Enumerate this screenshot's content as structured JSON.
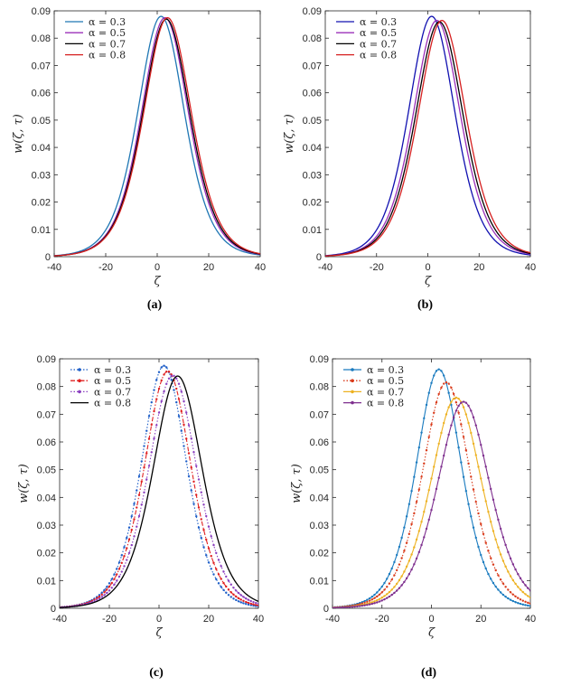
{
  "chart_data": [
    {
      "panel": "a",
      "caption": "(a)",
      "type": "line",
      "xlabel": "ζ",
      "ylabel": "w(ζ, τ)",
      "xlim": [
        -40,
        40
      ],
      "ylim": [
        0,
        0.09
      ],
      "xticks": [
        "-40",
        "-20",
        "0",
        "20",
        "40"
      ],
      "yticks": [
        "0",
        "0.01",
        "0.02",
        "0.03",
        "0.04",
        "0.05",
        "0.06",
        "0.07",
        "0.08",
        "0.09"
      ],
      "legend_position": "top-left",
      "series": [
        {
          "name": "α = 0.3",
          "color": "#1f77b4",
          "peak_x": 1.5,
          "peak_y": 0.088,
          "width": 12.2,
          "marker": "none",
          "dash": "solid"
        },
        {
          "name": "α = 0.5",
          "color": "#9b30b9",
          "peak_x": 3.0,
          "peak_y": 0.0875,
          "width": 12.3,
          "marker": "none",
          "dash": "solid"
        },
        {
          "name": "α = 0.7",
          "color": "#000000",
          "peak_x": 3.5,
          "peak_y": 0.087,
          "width": 12.4,
          "marker": "none",
          "dash": "solid"
        },
        {
          "name": "α = 0.8",
          "color": "#d62020",
          "peak_x": 4.0,
          "peak_y": 0.0875,
          "width": 12.5,
          "marker": "none",
          "dash": "solid"
        }
      ]
    },
    {
      "panel": "b",
      "caption": "(b)",
      "type": "line",
      "xlabel": "ζ",
      "ylabel": "w(ζ, τ)",
      "xlim": [
        -40,
        40
      ],
      "ylim": [
        0,
        0.09
      ],
      "xticks": [
        "-40",
        "-20",
        "0",
        "20",
        "40"
      ],
      "yticks": [
        "0",
        "0.01",
        "0.02",
        "0.03",
        "0.04",
        "0.05",
        "0.06",
        "0.07",
        "0.08",
        "0.09"
      ],
      "legend_position": "top-left",
      "series": [
        {
          "name": "α = 0.3",
          "color": "#1010b0",
          "peak_x": 1.5,
          "peak_y": 0.088,
          "width": 12.2,
          "marker": "none",
          "dash": "solid"
        },
        {
          "name": "α = 0.5",
          "color": "#9b30b9",
          "peak_x": 3.5,
          "peak_y": 0.0865,
          "width": 12.4,
          "marker": "none",
          "dash": "solid"
        },
        {
          "name": "α = 0.7",
          "color": "#000000",
          "peak_x": 4.5,
          "peak_y": 0.086,
          "width": 12.5,
          "marker": "none",
          "dash": "solid"
        },
        {
          "name": "α = 0.8",
          "color": "#d62020",
          "peak_x": 5.5,
          "peak_y": 0.0865,
          "width": 12.6,
          "marker": "none",
          "dash": "solid"
        }
      ]
    },
    {
      "panel": "c",
      "caption": "(c)",
      "type": "line",
      "xlabel": "ζ",
      "ylabel": "w(ζ, τ)",
      "xlim": [
        -40,
        40
      ],
      "ylim": [
        0,
        0.09
      ],
      "xticks": [
        "-40",
        "-20",
        "0",
        "20",
        "40"
      ],
      "yticks": [
        "0",
        "0.01",
        "0.02",
        "0.03",
        "0.04",
        "0.05",
        "0.06",
        "0.07",
        "0.08",
        "0.09"
      ],
      "legend_position": "top-left",
      "series": [
        {
          "name": "α = 0.3",
          "color": "#1f5fc8",
          "peak_x": 2.0,
          "peak_y": 0.0875,
          "width": 12.2,
          "marker": "dot",
          "dash": "dotted"
        },
        {
          "name": "α = 0.5",
          "color": "#e02020",
          "peak_x": 3.5,
          "peak_y": 0.0855,
          "width": 12.6,
          "marker": "dot",
          "dash": "dashdot"
        },
        {
          "name": "α = 0.7",
          "color": "#8b3fc0",
          "peak_x": 5.5,
          "peak_y": 0.084,
          "width": 13.0,
          "marker": "dot",
          "dash": "dotted"
        },
        {
          "name": "α = 0.8",
          "color": "#000000",
          "peak_x": 7.5,
          "peak_y": 0.0838,
          "width": 13.3,
          "marker": "none",
          "dash": "solid"
        }
      ]
    },
    {
      "panel": "d",
      "caption": "(d)",
      "type": "line",
      "xlabel": "ζ",
      "ylabel": "w(ζ, τ)",
      "xlim": [
        -40,
        40
      ],
      "ylim": [
        0,
        0.09
      ],
      "xticks": [
        "-40",
        "-20",
        "0",
        "20",
        "40"
      ],
      "yticks": [
        "0",
        "0.01",
        "0.02",
        "0.03",
        "0.04",
        "0.05",
        "0.06",
        "0.07",
        "0.08",
        "0.09"
      ],
      "legend_position": "top-left",
      "series": [
        {
          "name": "α = 0.3",
          "color": "#1a7bbf",
          "peak_x": 3.0,
          "peak_y": 0.0862,
          "width": 12.3,
          "marker": "dot",
          "dash": "solid"
        },
        {
          "name": "α = 0.5",
          "color": "#d93a1a",
          "peak_x": 6.0,
          "peak_y": 0.0815,
          "width": 13.0,
          "marker": "dot",
          "dash": "dotted"
        },
        {
          "name": "α = 0.7",
          "color": "#edb120",
          "peak_x": 10.0,
          "peak_y": 0.076,
          "width": 13.8,
          "marker": "dot",
          "dash": "solid"
        },
        {
          "name": "α = 0.8",
          "color": "#7e2f8e",
          "peak_x": 13.0,
          "peak_y": 0.0745,
          "width": 14.2,
          "marker": "dot",
          "dash": "solid"
        }
      ]
    }
  ]
}
